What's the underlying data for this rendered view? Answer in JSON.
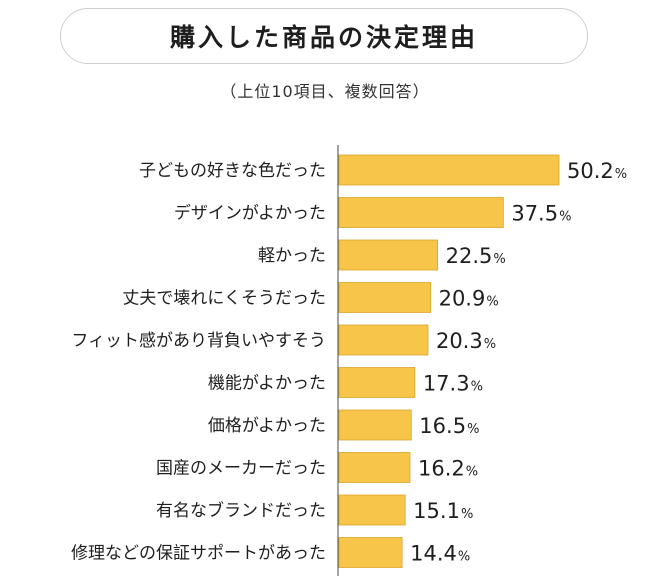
{
  "title": "購入した商品の決定理由",
  "subtitle": "（上位10項目、複数回答）",
  "colors": {
    "bar": "#f7c54a",
    "bar_stroke": "#d9a62a",
    "axis": "#444444"
  },
  "chart_data": {
    "type": "bar",
    "orientation": "horizontal",
    "categories": [
      "子どもの好きな色だった",
      "デザインがよかった",
      "軽かった",
      "丈夫で壊れにくそうだった",
      "フィット感があり背負いやすそう",
      "機能がよかった",
      "価格がよかった",
      "国産のメーカーだった",
      "有名なブランドだった",
      "修理などの保証サポートがあった"
    ],
    "values": [
      50.2,
      37.5,
      22.5,
      20.9,
      20.3,
      17.3,
      16.5,
      16.2,
      15.1,
      14.4
    ],
    "value_labels": [
      "50.2",
      "37.5",
      "22.5",
      "20.9",
      "20.3",
      "17.3",
      "16.5",
      "16.2",
      "15.1",
      "14.4"
    ],
    "unit": "%",
    "title": "購入した商品の決定理由",
    "subtitle": "（上位10項目、複数回答）",
    "xlim": [
      0,
      50.2
    ],
    "grid": false,
    "legend": "none"
  }
}
